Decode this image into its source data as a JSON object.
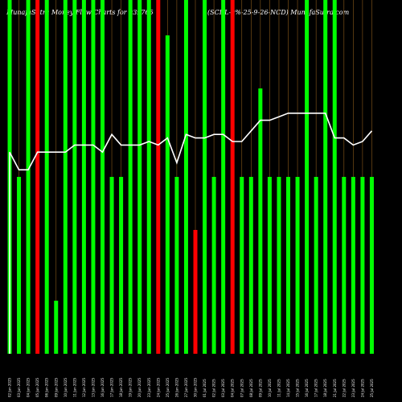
{
  "chart_data": {
    "type": "bar",
    "title_left": "MunafaSutra Money Flow Charts for 939765",
    "title_right": "(SCDL-9%-25-9-26-NCD) MunafaSutra.com",
    "colors": {
      "background": "#000000",
      "bar_up": "#00ff00",
      "bar_down": "#ff0000",
      "line": "#ffffff",
      "grid": "#8b5a1a"
    },
    "categories": [
      "02 Jun 2025",
      "03 Jun 2025",
      "04 Jun 2025",
      "05 Jun 2025",
      "06 Jun 2025",
      "09 Jun 2025",
      "10 Jun 2025",
      "11 Jun 2025",
      "12 Jun 2025",
      "13 Jun 2025",
      "16 Jun 2025",
      "17 Jun 2025",
      "18 Jun 2025",
      "19 Jun 2025",
      "20 Jun 2025",
      "23 Jun 2025",
      "24 Jun 2025",
      "25 Jun 2025",
      "26 Jun 2025",
      "27 Jun 2025",
      "30 Jun 2025",
      "01 Jul 2025",
      "02 Jul 2025",
      "03 Jul 2025",
      "04 Jul 2025",
      "07 Jul 2025",
      "08 Jul 2025",
      "09 Jul 2025",
      "10 Jul 2025",
      "11 Jul 2025",
      "14 Jul 2025",
      "15 Jul 2025",
      "16 Jul 2025",
      "17 Jul 2025",
      "18 Jul 2025",
      "21 Jul 2025",
      "22 Jul 2025",
      "23 Jul 2025",
      "24 Jul 2025",
      "25 Jul 2025"
    ],
    "bar_heights": [
      100,
      50,
      100,
      100,
      100,
      15,
      100,
      100,
      100,
      100,
      100,
      50,
      50,
      100,
      100,
      100,
      100,
      90,
      50,
      100,
      35,
      100,
      50,
      100,
      100,
      50,
      50,
      75,
      50,
      50,
      50,
      50,
      100,
      50,
      100,
      100,
      50,
      50,
      50,
      50
    ],
    "bar_colors": [
      "up",
      "up",
      "up",
      "down",
      "up",
      "up",
      "up",
      "up",
      "up",
      "up",
      "up",
      "up",
      "up",
      "up",
      "up",
      "up",
      "down",
      "up",
      "up",
      "up",
      "down",
      "up",
      "up",
      "up",
      "down",
      "up",
      "up",
      "up",
      "up",
      "up",
      "up",
      "up",
      "up",
      "up",
      "up",
      "up",
      "up",
      "up",
      "up",
      "up"
    ],
    "line_values": [
      57,
      52,
      52,
      57,
      57,
      57,
      57,
      59,
      59,
      59,
      57,
      62,
      59,
      59,
      59,
      60,
      59,
      61,
      54,
      62,
      61,
      61,
      62,
      62,
      60,
      60,
      63,
      66,
      66,
      67,
      68,
      68,
      68,
      68,
      68,
      61,
      61,
      59,
      60,
      63
    ],
    "ylim": [
      0,
      100
    ]
  }
}
